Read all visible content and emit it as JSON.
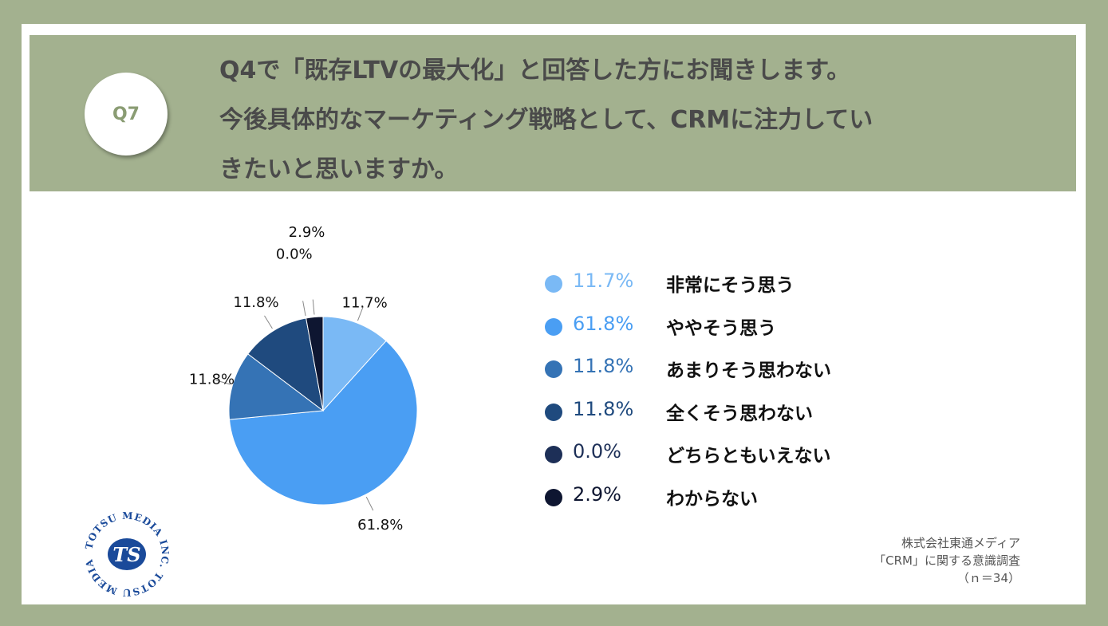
{
  "question": {
    "badge": "Q7",
    "lines": [
      "Q4で「既存LTVの最大化」と回答した方にお聞きします。",
      "今後具体的なマーケティング戦略として、CRMに注力してい",
      "きたいと思いますか。"
    ]
  },
  "chart_data": {
    "type": "pie",
    "title": "",
    "slices": [
      {
        "label": "非常にそう思う",
        "value": 11.7,
        "display": "11.7%",
        "color": "#7ab9f5"
      },
      {
        "label": "ややそう思う",
        "value": 61.8,
        "display": "61.8%",
        "color": "#4a9ef3"
      },
      {
        "label": "あまりそう思わない",
        "value": 11.8,
        "display": "11.8%",
        "color": "#3573b5"
      },
      {
        "label": "全くそう思わない",
        "value": 11.8,
        "display": "11.8%",
        "color": "#1f4a7e"
      },
      {
        "label": "どちらともいえない",
        "value": 0.0,
        "display": "0.0%",
        "color": "#1d2f57"
      },
      {
        "label": "わからない",
        "value": 2.9,
        "display": "2.9%",
        "color": "#0e1631"
      }
    ],
    "legend_position": "right"
  },
  "source": {
    "lines": [
      "株式会社東通メディア",
      "「CRM」に関する意識調査",
      "（ｎ＝34）"
    ]
  },
  "logo": {
    "text": "TOTSU MEDIA INC. TOTSU MEDIA INC.",
    "mark": "TS"
  }
}
